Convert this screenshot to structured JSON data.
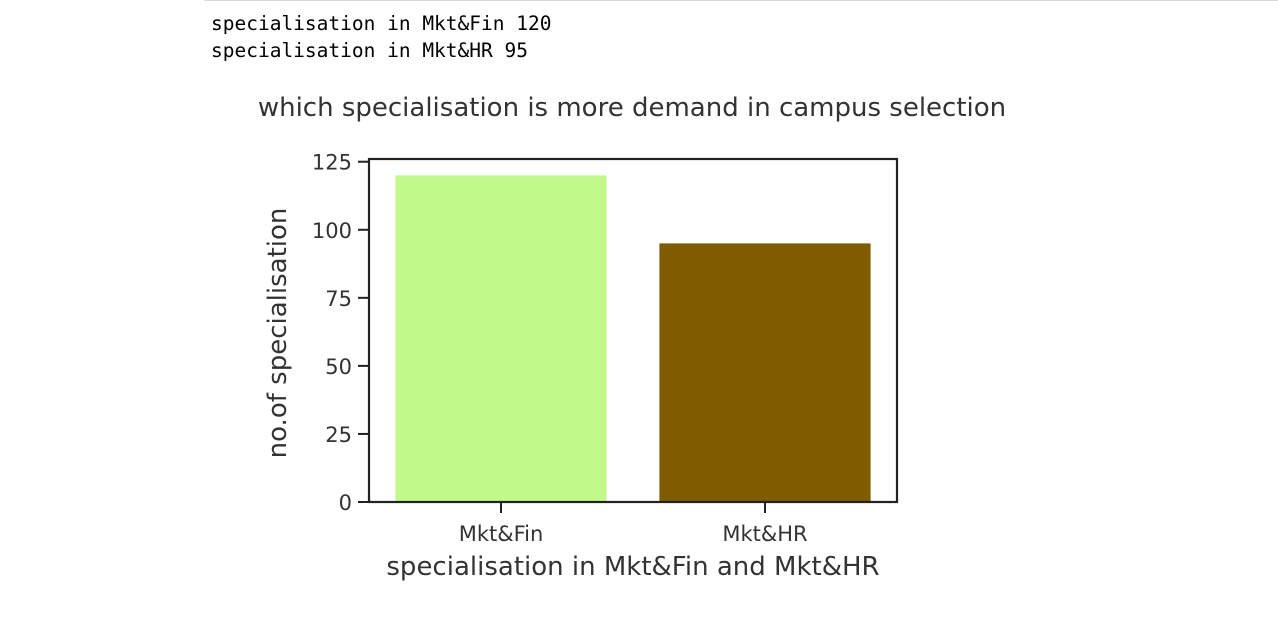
{
  "output": {
    "lines": [
      "specialisation in Mkt&Fin 120",
      "specialisation in Mkt&HR 95"
    ]
  },
  "chart_data": {
    "type": "bar",
    "title": "which specialisation is more demand in campus selection",
    "xlabel": "specialisation in Mkt&Fin and Mkt&HR",
    "ylabel": "no.of specialisation",
    "categories": [
      "Mkt&Fin",
      "Mkt&HR"
    ],
    "values": [
      120,
      95
    ],
    "colors": [
      "#c1fa8a",
      "#7f5c00"
    ],
    "ylim": [
      0,
      126
    ],
    "yticks": [
      0,
      25,
      50,
      75,
      100,
      125
    ],
    "grid": false,
    "legend": null
  }
}
